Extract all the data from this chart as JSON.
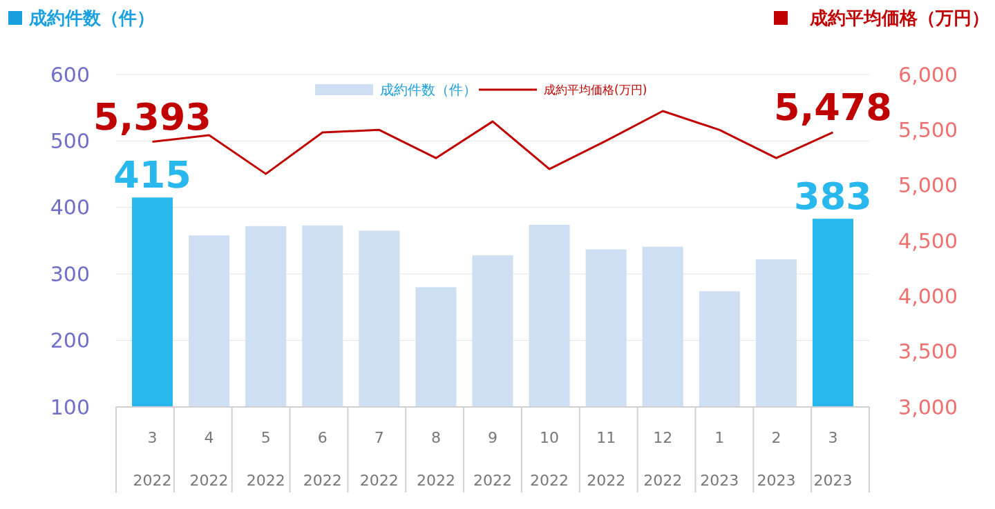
{
  "chart_data": {
    "type": "bar",
    "ylabel": "成約件数（件）",
    "y2label": "成約平均価格（万円）",
    "categories": [
      "3\n2022",
      "4\n2022",
      "5\n2022",
      "6\n2022",
      "7\n2022",
      "8\n2022",
      "9\n2022",
      "10\n2022",
      "11\n2022",
      "12\n2022",
      "1\n2023",
      "2\n2023",
      "3\n2023"
    ],
    "series": [
      {
        "name": "成約件数（件）",
        "color": "#cfdff3",
        "colors": [
          "#29b8ee",
          "#cfdff3",
          "#cfdff3",
          "#cfdff3",
          "#cfdff3",
          "#cfdff3",
          "#cfdff3",
          "#cfdff3",
          "#cfdff3",
          "#cfdff3",
          "#cfdff3",
          "#cfdff3",
          "#29b8ee"
        ],
        "values": [
          415,
          358,
          372,
          373,
          365,
          280,
          328,
          374,
          337,
          341,
          274,
          322,
          383
        ],
        "value_labels": [
          "415",
          null,
          null,
          null,
          null,
          null,
          null,
          null,
          null,
          null,
          null,
          null,
          "383"
        ]
      },
      {
        "name": "成約平均価格(万円)",
        "type": "line",
        "axis": "y2",
        "color": "#c00000",
        "values": [
          5393,
          5452,
          5103,
          5477,
          5500,
          5246,
          5576,
          5147,
          5402,
          5670,
          5500,
          5246,
          5478
        ],
        "value_labels": [
          "5,393",
          null,
          null,
          null,
          null,
          null,
          null,
          null,
          null,
          null,
          null,
          null,
          "5,478"
        ]
      }
    ],
    "ylim": [
      100,
      600
    ],
    "yticks": [
      100,
      200,
      300,
      400,
      500,
      600
    ],
    "y2lim": [
      3000,
      6000
    ],
    "y2ticks": [
      {
        "value": 3000,
        "label": "3,000"
      },
      {
        "value": 3500,
        "label": "3,500"
      },
      {
        "value": 4000,
        "label": "4,000"
      },
      {
        "value": 4500,
        "label": "4,500"
      },
      {
        "value": 5000,
        "label": "5,000"
      },
      {
        "value": 5500,
        "label": "5,500"
      },
      {
        "value": 6000,
        "label": "6,000"
      }
    ],
    "grid": "y",
    "legend": "top",
    "marker": "none",
    "line_style": "solid"
  }
}
